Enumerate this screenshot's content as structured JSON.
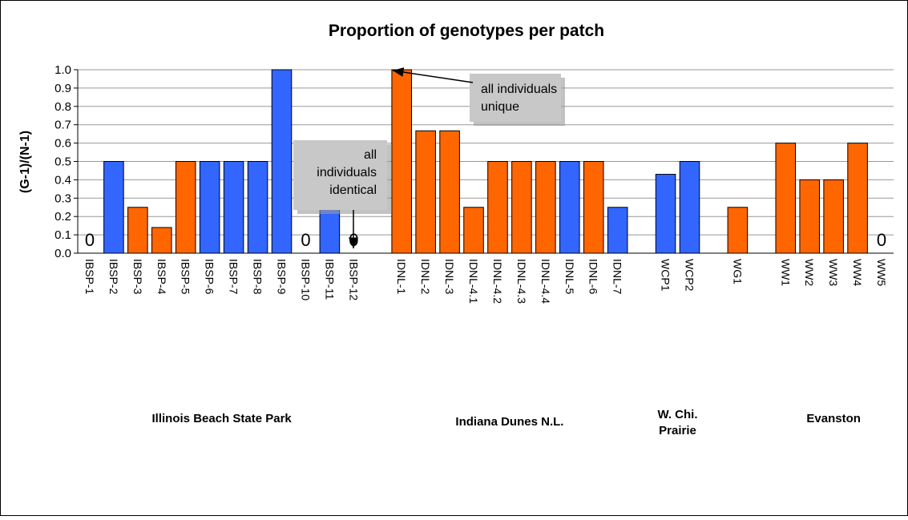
{
  "chart_data": {
    "type": "bar",
    "title": "Proportion of genotypes per patch",
    "y_label": "(G-1)/(N-1)",
    "categories": [
      "IBSP-1",
      "IBSP-2",
      "IBSP-3",
      "IBSP-4",
      "IBSP-5",
      "IBSP-6",
      "IBSP-7",
      "IBSP-8",
      "IBSP-9",
      "IBSP-10",
      "IBSP-11",
      "IBSP-12",
      null,
      "IDNL-1",
      "IDNL-2",
      "IDNL-3",
      "IDNL-4.1",
      "IDNL-4.2",
      "IDNL-4.3",
      "IDNL-4.4",
      "IDNL-5",
      "IDNL-6",
      "IDNL-7",
      null,
      "WCP1",
      "WCP2",
      null,
      "WG1",
      null,
      "WW1",
      "WW2",
      "WW3",
      "WW4",
      "WW5"
    ],
    "values": [
      0,
      0.5,
      0.25,
      0.14,
      0.5,
      0.5,
      0.5,
      0.5,
      1.0,
      0,
      0.5,
      0,
      null,
      1.0,
      0.667,
      0.667,
      0.25,
      0.5,
      0.5,
      0.5,
      0.5,
      0.5,
      0.25,
      null,
      0.43,
      0.5,
      null,
      0.25,
      null,
      0.6,
      0.4,
      0.4,
      0.6,
      0
    ],
    "colors": [
      null,
      "#3366ff",
      "#ff6600",
      "#ff6600",
      "#ff6600",
      "#3366ff",
      "#3366ff",
      "#3366ff",
      "#3366ff",
      null,
      "#3366ff",
      null,
      null,
      "#ff6600",
      "#ff6600",
      "#ff6600",
      "#ff6600",
      "#ff6600",
      "#ff6600",
      "#ff6600",
      "#3366ff",
      "#ff6600",
      "#3366ff",
      null,
      "#3366ff",
      "#3366ff",
      null,
      "#ff6600",
      null,
      "#ff6600",
      "#ff6600",
      "#ff6600",
      "#ff6600",
      null
    ],
    "ylim": [
      0,
      1
    ],
    "yticks": [
      {
        "value": 0,
        "label": "0.0"
      },
      0.1,
      0.2,
      0.3,
      0.4,
      0.5,
      0.6,
      0.7,
      0.8,
      0.9,
      {
        "value": 1,
        "label": "1.0"
      }
    ],
    "grid": true,
    "groups": [
      {
        "lines": [
          "Illinois Beach State Park"
        ],
        "from": "IBSP-1",
        "to": "IBSP-12"
      },
      {
        "lines": [
          "Indiana Dunes N.L."
        ],
        "from": "IDNL-1",
        "to": "IDNL-7"
      },
      {
        "lines": [
          "W. Chi.",
          "Prairie"
        ],
        "from": "WCP1",
        "to": "WCP2"
      },
      {
        "lines": [
          "Evanston"
        ],
        "from": "WW1",
        "to": "WW5"
      }
    ],
    "annotations": [
      {
        "lines": [
          "all individuals",
          "unique"
        ]
      },
      {
        "lines": [
          "all",
          "individuals",
          "identical"
        ]
      }
    ]
  }
}
